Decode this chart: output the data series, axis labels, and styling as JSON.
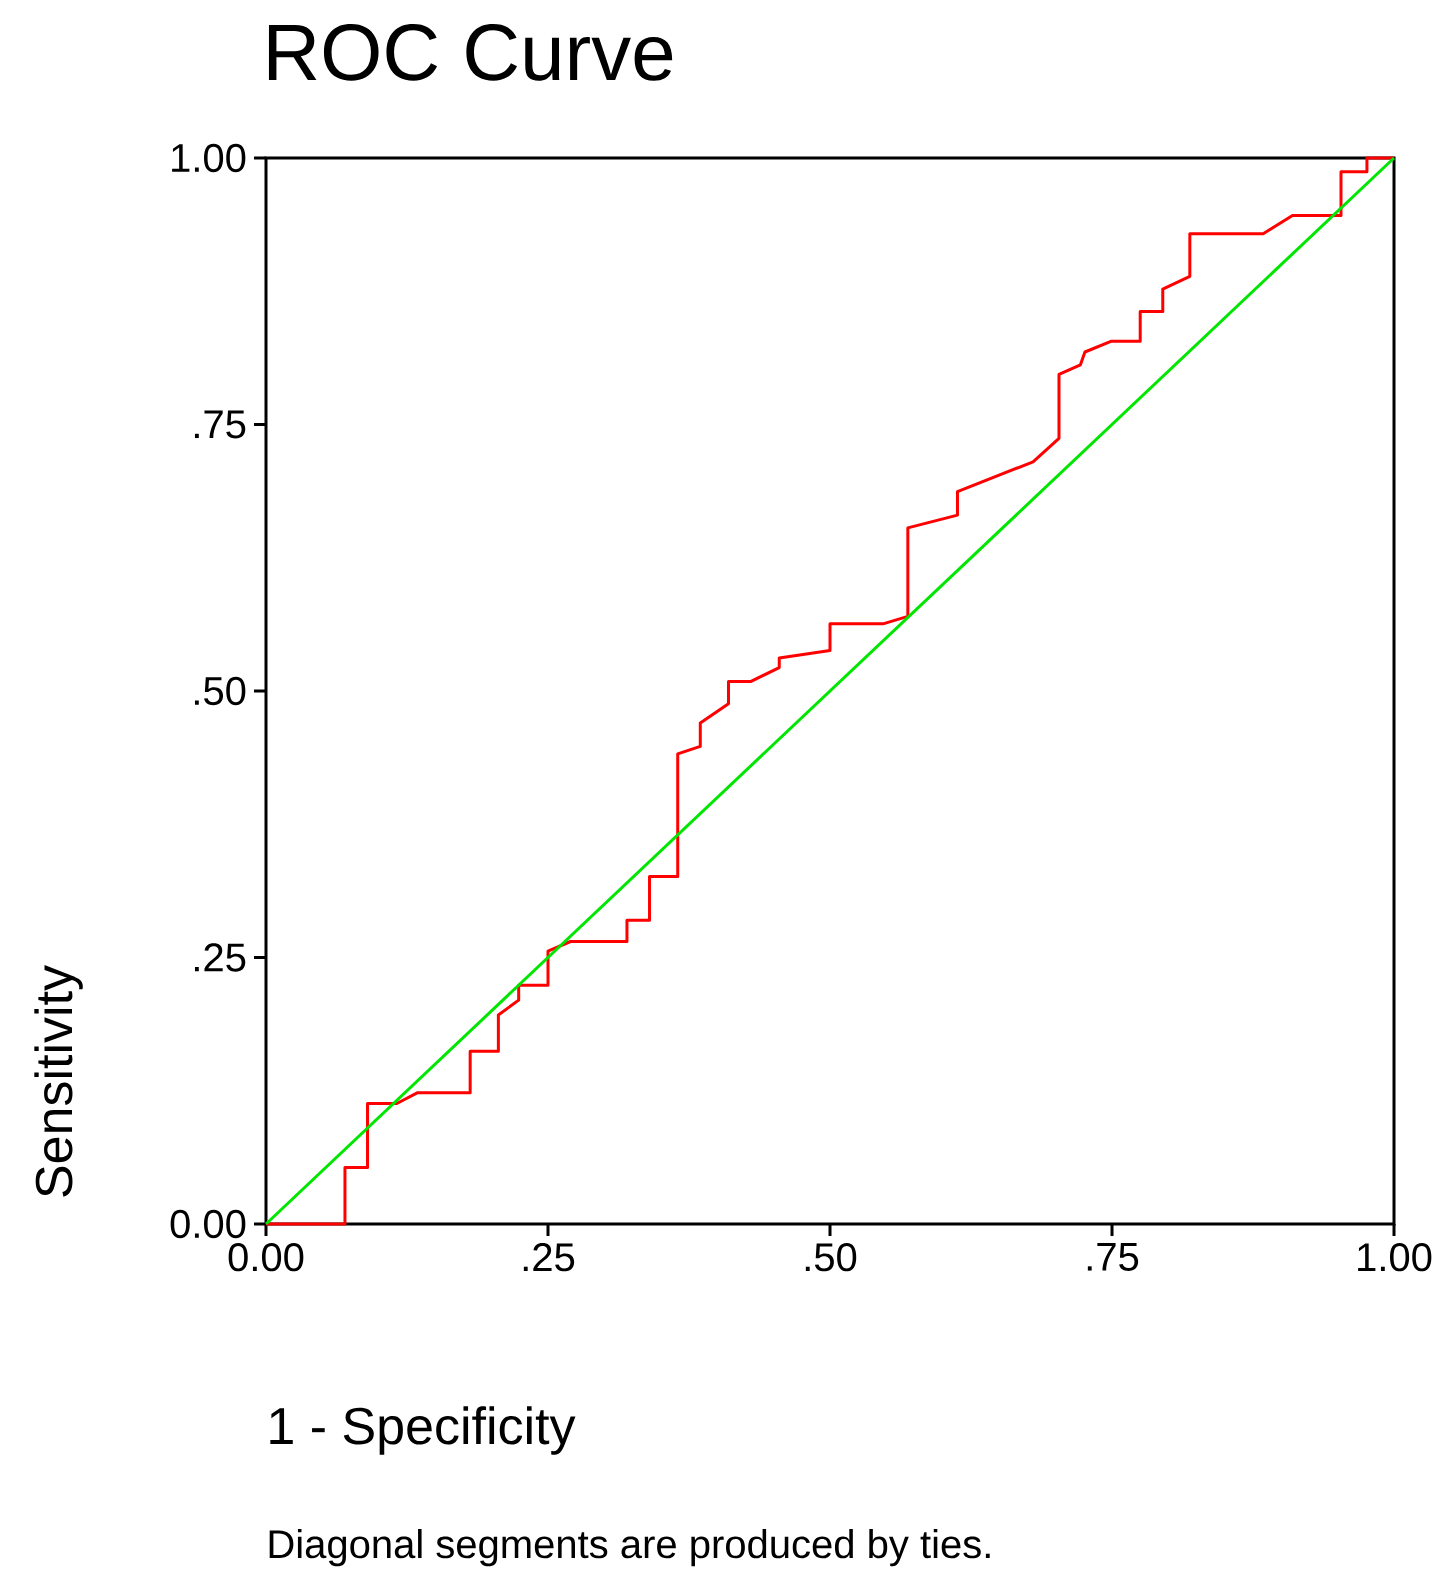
{
  "chart_data": {
    "type": "line",
    "title": "ROC Curve",
    "xlabel": "1 - Specificity",
    "ylabel": "Sensitivity",
    "annotations": [
      "Diagonal segments are produced by ties."
    ],
    "xlim": [
      0,
      1
    ],
    "ylim": [
      0,
      1
    ],
    "xticks": [
      {
        "value": 0,
        "label": "0.00"
      },
      {
        "value": 0.25,
        "label": ".25"
      },
      {
        "value": 0.5,
        "label": ".50"
      },
      {
        "value": 0.75,
        "label": ".75"
      },
      {
        "value": 1,
        "label": "1.00"
      }
    ],
    "yticks": [
      {
        "value": 0,
        "label": "0.00"
      },
      {
        "value": 0.25,
        "label": ".25"
      },
      {
        "value": 0.5,
        "label": ".50"
      },
      {
        "value": 0.75,
        "label": ".75"
      },
      {
        "value": 1,
        "label": "1.00"
      }
    ],
    "grid": false,
    "marker": "none",
    "line_style": "solid",
    "series": [
      {
        "color": "#ff0000",
        "x": [
          0,
          0.07,
          0.07,
          0.09,
          0.09,
          0.116,
          0.134,
          0.181,
          0.181,
          0.206,
          0.206,
          0.224,
          0.224,
          0.25,
          0.25,
          0.27,
          0.32,
          0.32,
          0.34,
          0.34,
          0.365,
          0.365,
          0.385,
          0.385,
          0.41,
          0.41,
          0.43,
          0.455,
          0.455,
          0.5,
          0.5,
          0.547,
          0.569,
          0.569,
          0.613,
          0.613,
          0.68,
          0.703,
          0.703,
          0.722,
          0.726,
          0.749,
          0.775,
          0.775,
          0.795,
          0.795,
          0.819,
          0.819,
          0.884,
          0.91,
          0.953,
          0.953,
          0.976,
          0.976,
          1
        ],
        "values": [
          0,
          0,
          0.053,
          0.053,
          0.113,
          0.113,
          0.123,
          0.123,
          0.162,
          0.162,
          0.196,
          0.21,
          0.224,
          0.224,
          0.256,
          0.265,
          0.265,
          0.285,
          0.285,
          0.326,
          0.326,
          0.441,
          0.448,
          0.47,
          0.488,
          0.509,
          0.509,
          0.522,
          0.531,
          0.538,
          0.563,
          0.563,
          0.57,
          0.653,
          0.665,
          0.687,
          0.715,
          0.737,
          0.797,
          0.806,
          0.818,
          0.828,
          0.828,
          0.856,
          0.856,
          0.877,
          0.889,
          0.929,
          0.929,
          0.946,
          0.946,
          0.987,
          0.987,
          1,
          1
        ]
      },
      {
        "color": "#00e600",
        "x": [
          0,
          1
        ],
        "values": [
          0,
          1
        ]
      }
    ]
  }
}
